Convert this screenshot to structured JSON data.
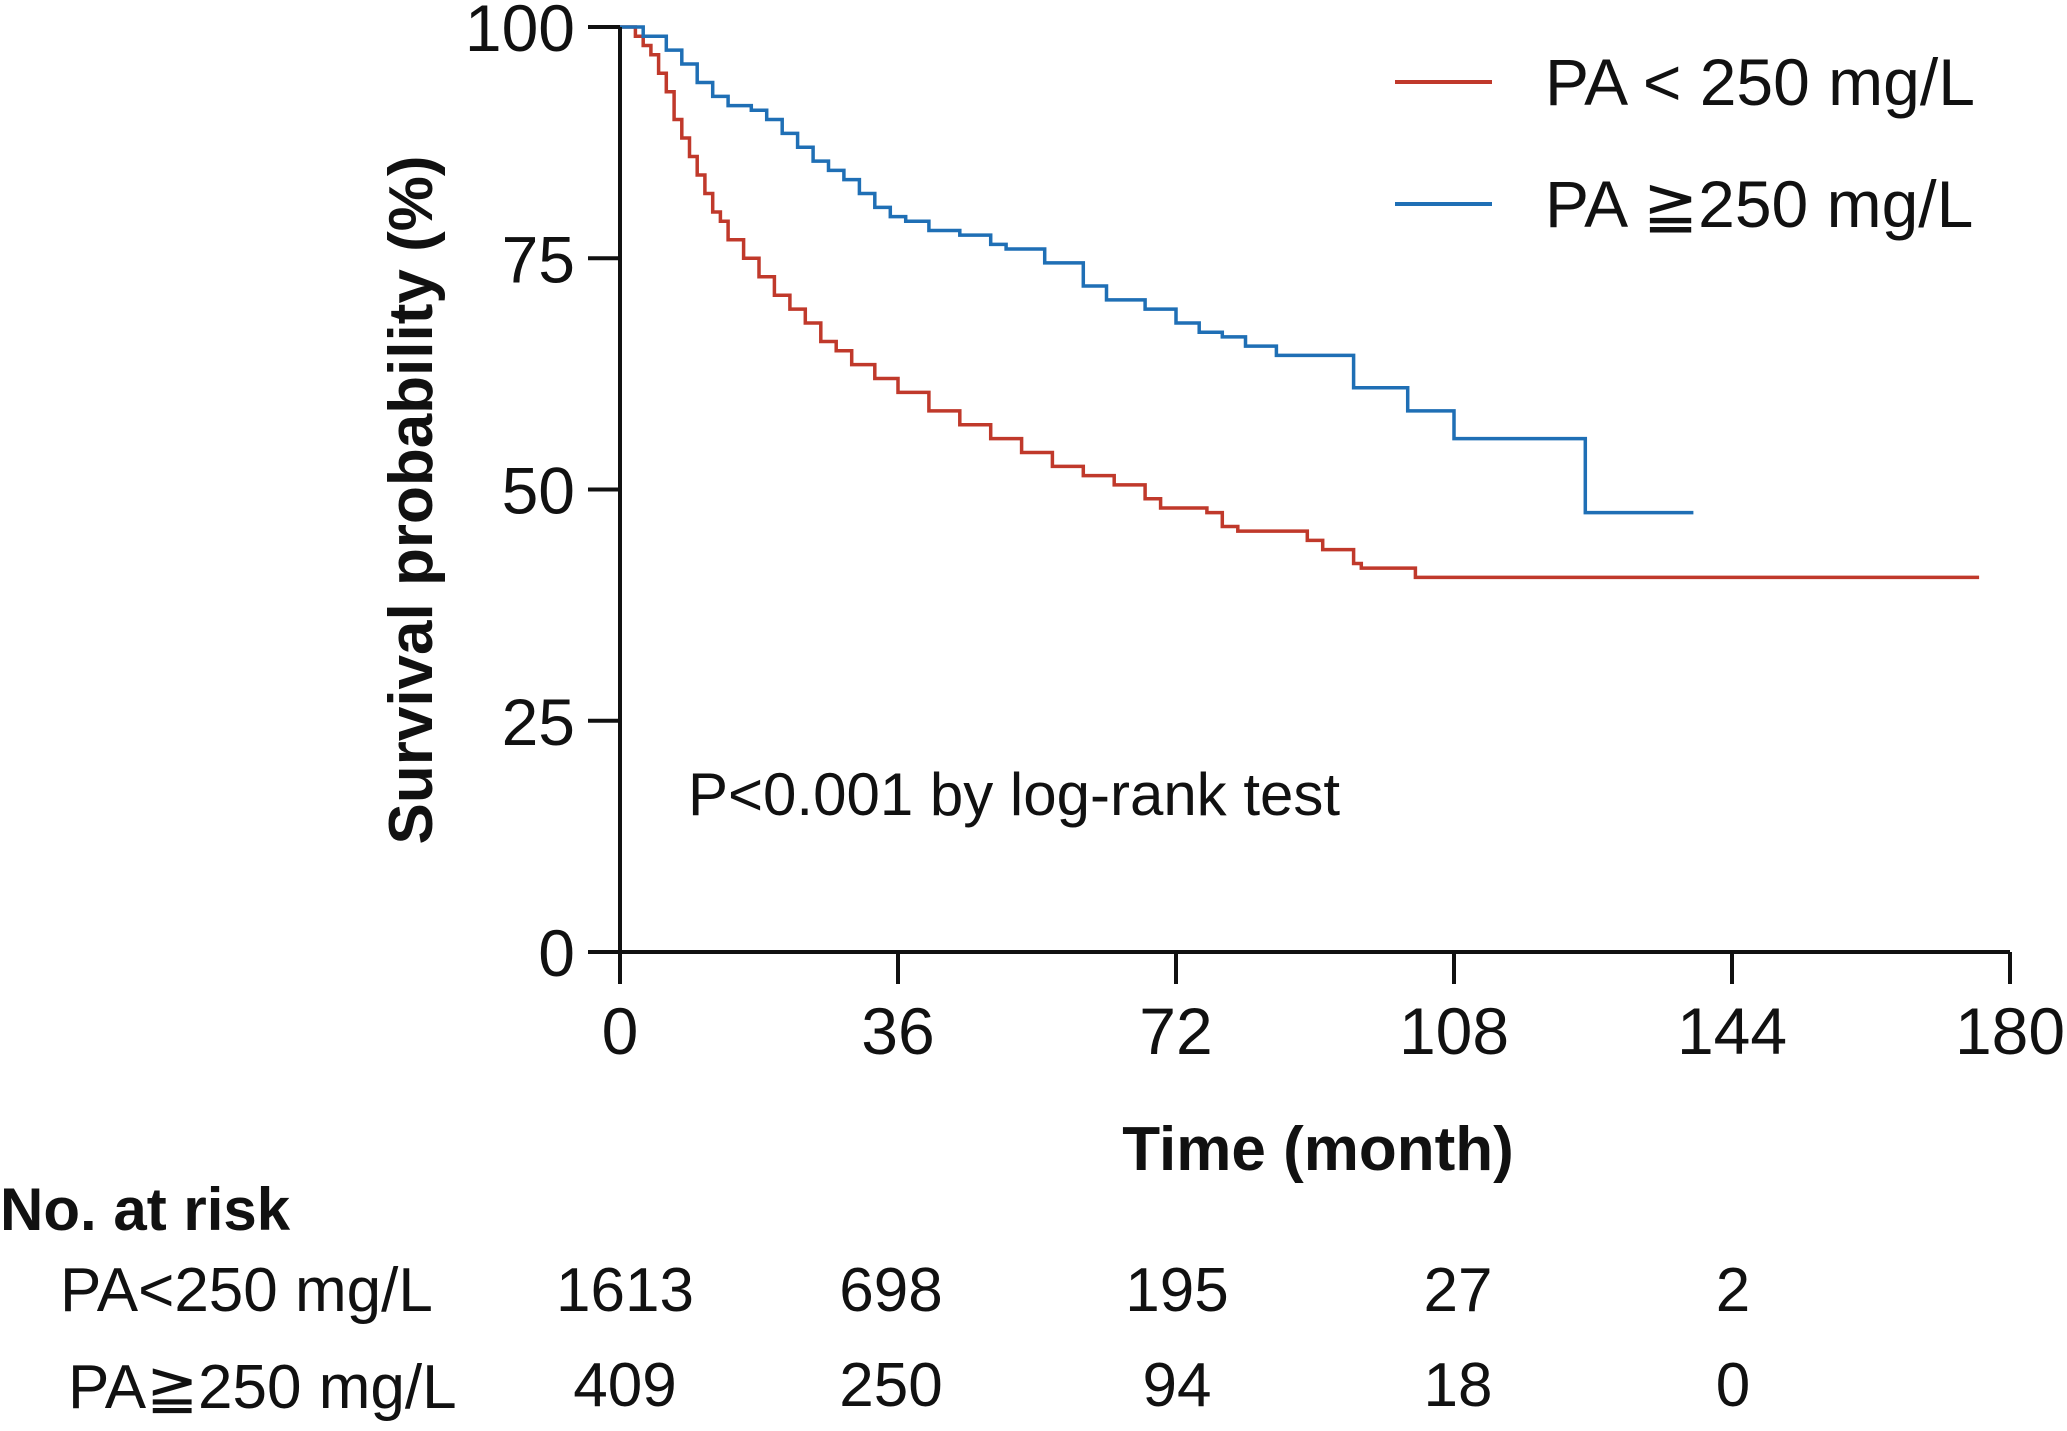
{
  "chart_data": {
    "type": "line",
    "subtype": "kaplan-meier",
    "title": "",
    "xlabel": "Time (month)",
    "ylabel": "Survival probability (%)",
    "xlim": [
      0,
      180
    ],
    "ylim": [
      0,
      100
    ],
    "xticks": [
      0,
      36,
      72,
      108,
      144,
      180
    ],
    "yticks": [
      0,
      25,
      50,
      75,
      100
    ],
    "legend_position": "top-right",
    "annotation": "P<0.001 by log-rank test",
    "series": [
      {
        "name": "PA < 250  mg/L",
        "color": "#c0392b",
        "points": [
          [
            0,
            100
          ],
          [
            1,
            100
          ],
          [
            2,
            99
          ],
          [
            3,
            98
          ],
          [
            4,
            97
          ],
          [
            5,
            95
          ],
          [
            6,
            93
          ],
          [
            7,
            90
          ],
          [
            8,
            88
          ],
          [
            9,
            86
          ],
          [
            10,
            84
          ],
          [
            11,
            82
          ],
          [
            12,
            80
          ],
          [
            13,
            79
          ],
          [
            14,
            77
          ],
          [
            16,
            75
          ],
          [
            18,
            73
          ],
          [
            20,
            71
          ],
          [
            22,
            69.5
          ],
          [
            24,
            68
          ],
          [
            26,
            66
          ],
          [
            28,
            65
          ],
          [
            30,
            63.5
          ],
          [
            33,
            62
          ],
          [
            36,
            60.5
          ],
          [
            40,
            58.5
          ],
          [
            44,
            57
          ],
          [
            48,
            55.5
          ],
          [
            52,
            54
          ],
          [
            56,
            52.5
          ],
          [
            60,
            51.5
          ],
          [
            64,
            50.5
          ],
          [
            68,
            49
          ],
          [
            70,
            48
          ],
          [
            76,
            47.5
          ],
          [
            78,
            46
          ],
          [
            80,
            45.5
          ],
          [
            89,
            44.5
          ],
          [
            91,
            43.5
          ],
          [
            95,
            42
          ],
          [
            96,
            41.5
          ],
          [
            103,
            40.5
          ],
          [
            176,
            40.5
          ]
        ]
      },
      {
        "name": "PA ≧250  mg/L",
        "color": "#1f6fb5",
        "points": [
          [
            0,
            100
          ],
          [
            3,
            99
          ],
          [
            6,
            97.5
          ],
          [
            8,
            96
          ],
          [
            10,
            94
          ],
          [
            12,
            92.5
          ],
          [
            14,
            91.5
          ],
          [
            17,
            91
          ],
          [
            19,
            90
          ],
          [
            21,
            88.5
          ],
          [
            23,
            87
          ],
          [
            25,
            85.5
          ],
          [
            27,
            84.5
          ],
          [
            29,
            83.5
          ],
          [
            31,
            82
          ],
          [
            33,
            80.5
          ],
          [
            35,
            79.5
          ],
          [
            37,
            79
          ],
          [
            40,
            78
          ],
          [
            44,
            77.5
          ],
          [
            48,
            76.5
          ],
          [
            50,
            76
          ],
          [
            55,
            74.5
          ],
          [
            60,
            72
          ],
          [
            63,
            70.5
          ],
          [
            68,
            69.5
          ],
          [
            72,
            68
          ],
          [
            75,
            67
          ],
          [
            78,
            66.5
          ],
          [
            81,
            65.5
          ],
          [
            85,
            64.5
          ],
          [
            95,
            61
          ],
          [
            102,
            58.5
          ],
          [
            108,
            55.5
          ],
          [
            125,
            55.5
          ],
          [
            125,
            47.5
          ],
          [
            139,
            47.5
          ]
        ]
      }
    ],
    "at_risk": {
      "title": "No. at risk",
      "times": [
        0,
        36,
        72,
        108,
        144
      ],
      "rows": [
        {
          "label": "PA<250 mg/L",
          "values": [
            "1613",
            "698",
            "195",
            "27",
            "2"
          ]
        },
        {
          "label": "PA≧250 mg/L",
          "values": [
            "409",
            "250",
            "94",
            "18",
            "0"
          ]
        }
      ]
    }
  }
}
